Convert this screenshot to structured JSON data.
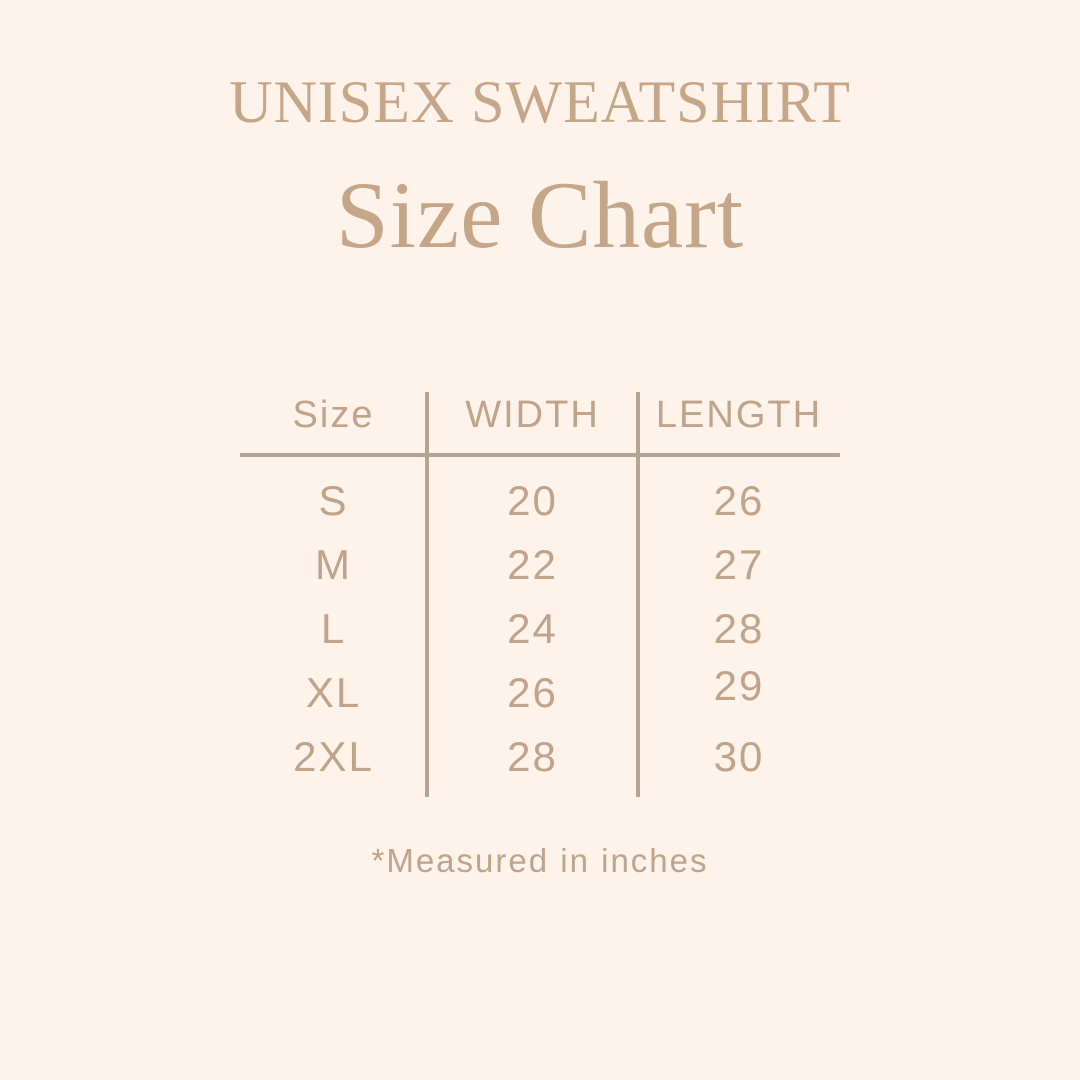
{
  "colors": {
    "bg": "#fdf3ea",
    "serif": "#c5a688",
    "sans": "#bfa48b",
    "line": "#b5a493"
  },
  "header": {
    "eyebrow": "UNISEX SWEATSHIRT",
    "title": "Size Chart"
  },
  "chart_data": {
    "type": "table",
    "title": "UNISEX SWEATSHIRT Size Chart",
    "columns": [
      "Size",
      "WIDTH",
      "LENGTH"
    ],
    "rows": [
      {
        "size": "S",
        "width": 20,
        "length": 26
      },
      {
        "size": "M",
        "width": 22,
        "length": 27
      },
      {
        "size": "L",
        "width": 24,
        "length": 28
      },
      {
        "size": "XL",
        "width": 26,
        "length": 29
      },
      {
        "size": "2XL",
        "width": 28,
        "length": 30
      }
    ],
    "footnote": "*Measured in inches"
  }
}
